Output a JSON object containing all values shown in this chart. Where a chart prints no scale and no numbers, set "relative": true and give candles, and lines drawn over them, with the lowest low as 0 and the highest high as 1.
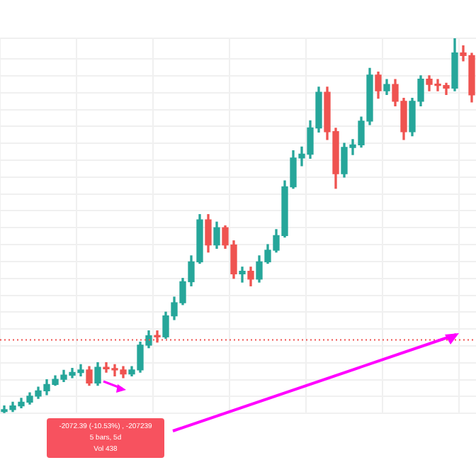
{
  "chart_data": {
    "type": "candlestick",
    "relative": true,
    "grid": true,
    "legend": false,
    "categories": [
      null,
      null,
      null,
      null,
      null,
      null,
      null,
      null,
      null,
      null,
      null,
      null,
      null,
      null,
      null,
      null,
      null,
      null,
      null,
      null,
      null,
      null,
      null,
      null,
      null,
      null,
      null,
      null,
      null,
      null,
      null,
      null,
      null,
      null,
      null,
      null,
      null,
      null,
      null,
      null,
      null,
      null,
      null,
      null,
      null,
      null,
      null,
      null,
      null,
      null,
      null,
      null,
      null,
      null,
      null,
      null
    ],
    "ohlc": [
      [
        0.005,
        0.02,
        0,
        0.01
      ],
      [
        0.01,
        0.03,
        0.005,
        0.02
      ],
      [
        0.02,
        0.04,
        0.015,
        0.03
      ],
      [
        0.03,
        0.055,
        0.025,
        0.046
      ],
      [
        0.046,
        0.07,
        0.04,
        0.06
      ],
      [
        0.06,
        0.09,
        0.05,
        0.077
      ],
      [
        0.077,
        0.1,
        0.075,
        0.091
      ],
      [
        0.091,
        0.115,
        0.085,
        0.102
      ],
      [
        0.102,
        0.12,
        0.095,
        0.109
      ],
      [
        0.109,
        0.13,
        0.1,
        0.116
      ],
      [
        0.116,
        0.125,
        0.075,
        0.081
      ],
      [
        0.081,
        0.135,
        0.075,
        0.123
      ],
      [
        0.123,
        0.135,
        0.11,
        0.119
      ],
      [
        0.119,
        0.13,
        0.1,
        0.116
      ],
      [
        0.116,
        0.125,
        0.095,
        0.105
      ],
      [
        0.105,
        0.125,
        0.1,
        0.116
      ],
      [
        0.116,
        0.19,
        0.11,
        0.182
      ],
      [
        0.182,
        0.22,
        0.175,
        0.207
      ],
      [
        0.207,
        0.22,
        0.19,
        0.204
      ],
      [
        0.204,
        0.27,
        0.2,
        0.26
      ],
      [
        0.26,
        0.31,
        0.25,
        0.295
      ],
      [
        0.295,
        0.36,
        0.29,
        0.351
      ],
      [
        0.351,
        0.42,
        0.34,
        0.404
      ],
      [
        0.404,
        0.53,
        0.4,
        0.516
      ],
      [
        0.516,
        0.53,
        0.43,
        0.449
      ],
      [
        0.449,
        0.51,
        0.44,
        0.495
      ],
      [
        0.495,
        0.5,
        0.44,
        0.449
      ],
      [
        0.449,
        0.46,
        0.36,
        0.372
      ],
      [
        0.372,
        0.39,
        0.35,
        0.379
      ],
      [
        0.379,
        0.39,
        0.34,
        0.358
      ],
      [
        0.358,
        0.42,
        0.35,
        0.404
      ],
      [
        0.404,
        0.45,
        0.4,
        0.435
      ],
      [
        0.435,
        0.49,
        0.43,
        0.474
      ],
      [
        0.474,
        0.62,
        0.47,
        0.604
      ],
      [
        0.604,
        0.7,
        0.6,
        0.681
      ],
      [
        0.681,
        0.71,
        0.66,
        0.691
      ],
      [
        0.691,
        0.78,
        0.68,
        0.761
      ],
      [
        0.761,
        0.87,
        0.75,
        0.856
      ],
      [
        0.856,
        0.87,
        0.73,
        0.751
      ],
      [
        0.751,
        0.76,
        0.6,
        0.639
      ],
      [
        0.639,
        0.72,
        0.63,
        0.709
      ],
      [
        0.709,
        0.73,
        0.69,
        0.716
      ],
      [
        0.716,
        0.79,
        0.71,
        0.779
      ],
      [
        0.779,
        0.92,
        0.77,
        0.902
      ],
      [
        0.902,
        0.91,
        0.84,
        0.86
      ],
      [
        0.86,
        0.89,
        0.85,
        0.877
      ],
      [
        0.877,
        0.89,
        0.82,
        0.832
      ],
      [
        0.832,
        0.84,
        0.73,
        0.751
      ],
      [
        0.751,
        0.84,
        0.74,
        0.832
      ],
      [
        0.832,
        0.9,
        0.82,
        0.891
      ],
      [
        0.891,
        0.9,
        0.86,
        0.877
      ],
      [
        0.877,
        0.89,
        0.86,
        0.874
      ],
      [
        0.874,
        0.88,
        0.85,
        0.867
      ],
      [
        0.867,
        1,
        0.86,
        0.961
      ],
      [
        0.961,
        0.98,
        0.94,
        0.954
      ],
      [
        0.954,
        0.96,
        0.83,
        0.849
      ]
    ],
    "colors": [
      "#26a69a",
      "#26a69a",
      "#26a69a",
      "#26a69a",
      "#26a69a",
      "#26a69a",
      "#26a69a",
      "#26a69a",
      "#26a69a",
      "#26a69a",
      "#ef5350",
      "#26a69a",
      "#ef5350",
      "#ef5350",
      "#ef5350",
      "#26a69a",
      "#26a69a",
      "#26a69a",
      "#ef5350",
      "#26a69a",
      "#26a69a",
      "#26a69a",
      "#26a69a",
      "#26a69a",
      "#ef5350",
      "#26a69a",
      "#ef5350",
      "#ef5350",
      "#26a69a",
      "#ef5350",
      "#26a69a",
      "#26a69a",
      "#26a69a",
      "#26a69a",
      "#26a69a",
      "#26a69a",
      "#26a69a",
      "#26a69a",
      "#ef5350",
      "#ef5350",
      "#26a69a",
      "#26a69a",
      "#26a69a",
      "#26a69a",
      "#ef5350",
      "#26a69a",
      "#ef5350",
      "#ef5350",
      "#26a69a",
      "#26a69a",
      "#ef5350",
      "#ef5350",
      "#ef5350",
      "#26a69a",
      "#ef5350",
      "#ef5350"
    ],
    "ref_lines": [
      {
        "axis": "y",
        "value": 0.196,
        "color": "#ef5350",
        "line_style": "dotted"
      }
    ],
    "annotations": [
      "-2072.39 (-10.53%) , -207239",
      "5 bars, 5d",
      "Vol 438"
    ]
  }
}
